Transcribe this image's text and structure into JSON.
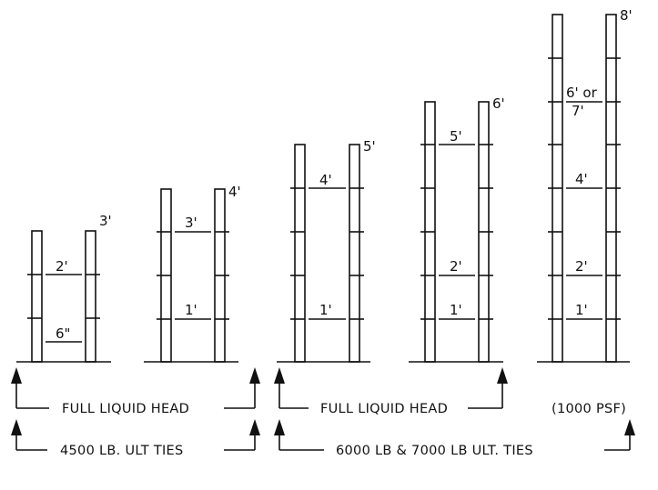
{
  "diagram": {
    "columns": [
      {
        "height_label": "3'",
        "height_ft": 3,
        "marks": [
          {
            "label": "2'"
          },
          {
            "label": "6\""
          }
        ]
      },
      {
        "height_label": "4'",
        "height_ft": 4,
        "marks": [
          {
            "label": "3'"
          },
          {
            "label": "1'"
          }
        ]
      },
      {
        "height_label": "5'",
        "height_ft": 5,
        "marks": [
          {
            "label": "4'"
          },
          {
            "label": "1'"
          }
        ]
      },
      {
        "height_label": "6'",
        "height_ft": 6,
        "marks": [
          {
            "label": "5'"
          },
          {
            "label": "2'"
          },
          {
            "label": "1'"
          }
        ]
      },
      {
        "height_label": "8'",
        "height_ft": 8,
        "marks": [
          {
            "label": "6' or"
          },
          {
            "label": "7'"
          },
          {
            "label": "4'"
          },
          {
            "label": "2'"
          },
          {
            "label": "1'"
          }
        ]
      }
    ],
    "brackets": [
      {
        "label": "FULL LIQUID HEAD"
      },
      {
        "label": "FULL LIQUID HEAD"
      },
      {
        "label": "(1000 PSF)"
      },
      {
        "label": "4500 LB. ULT TIES"
      },
      {
        "label": "6000 LB & 7000 LB ULT. TIES"
      }
    ]
  }
}
